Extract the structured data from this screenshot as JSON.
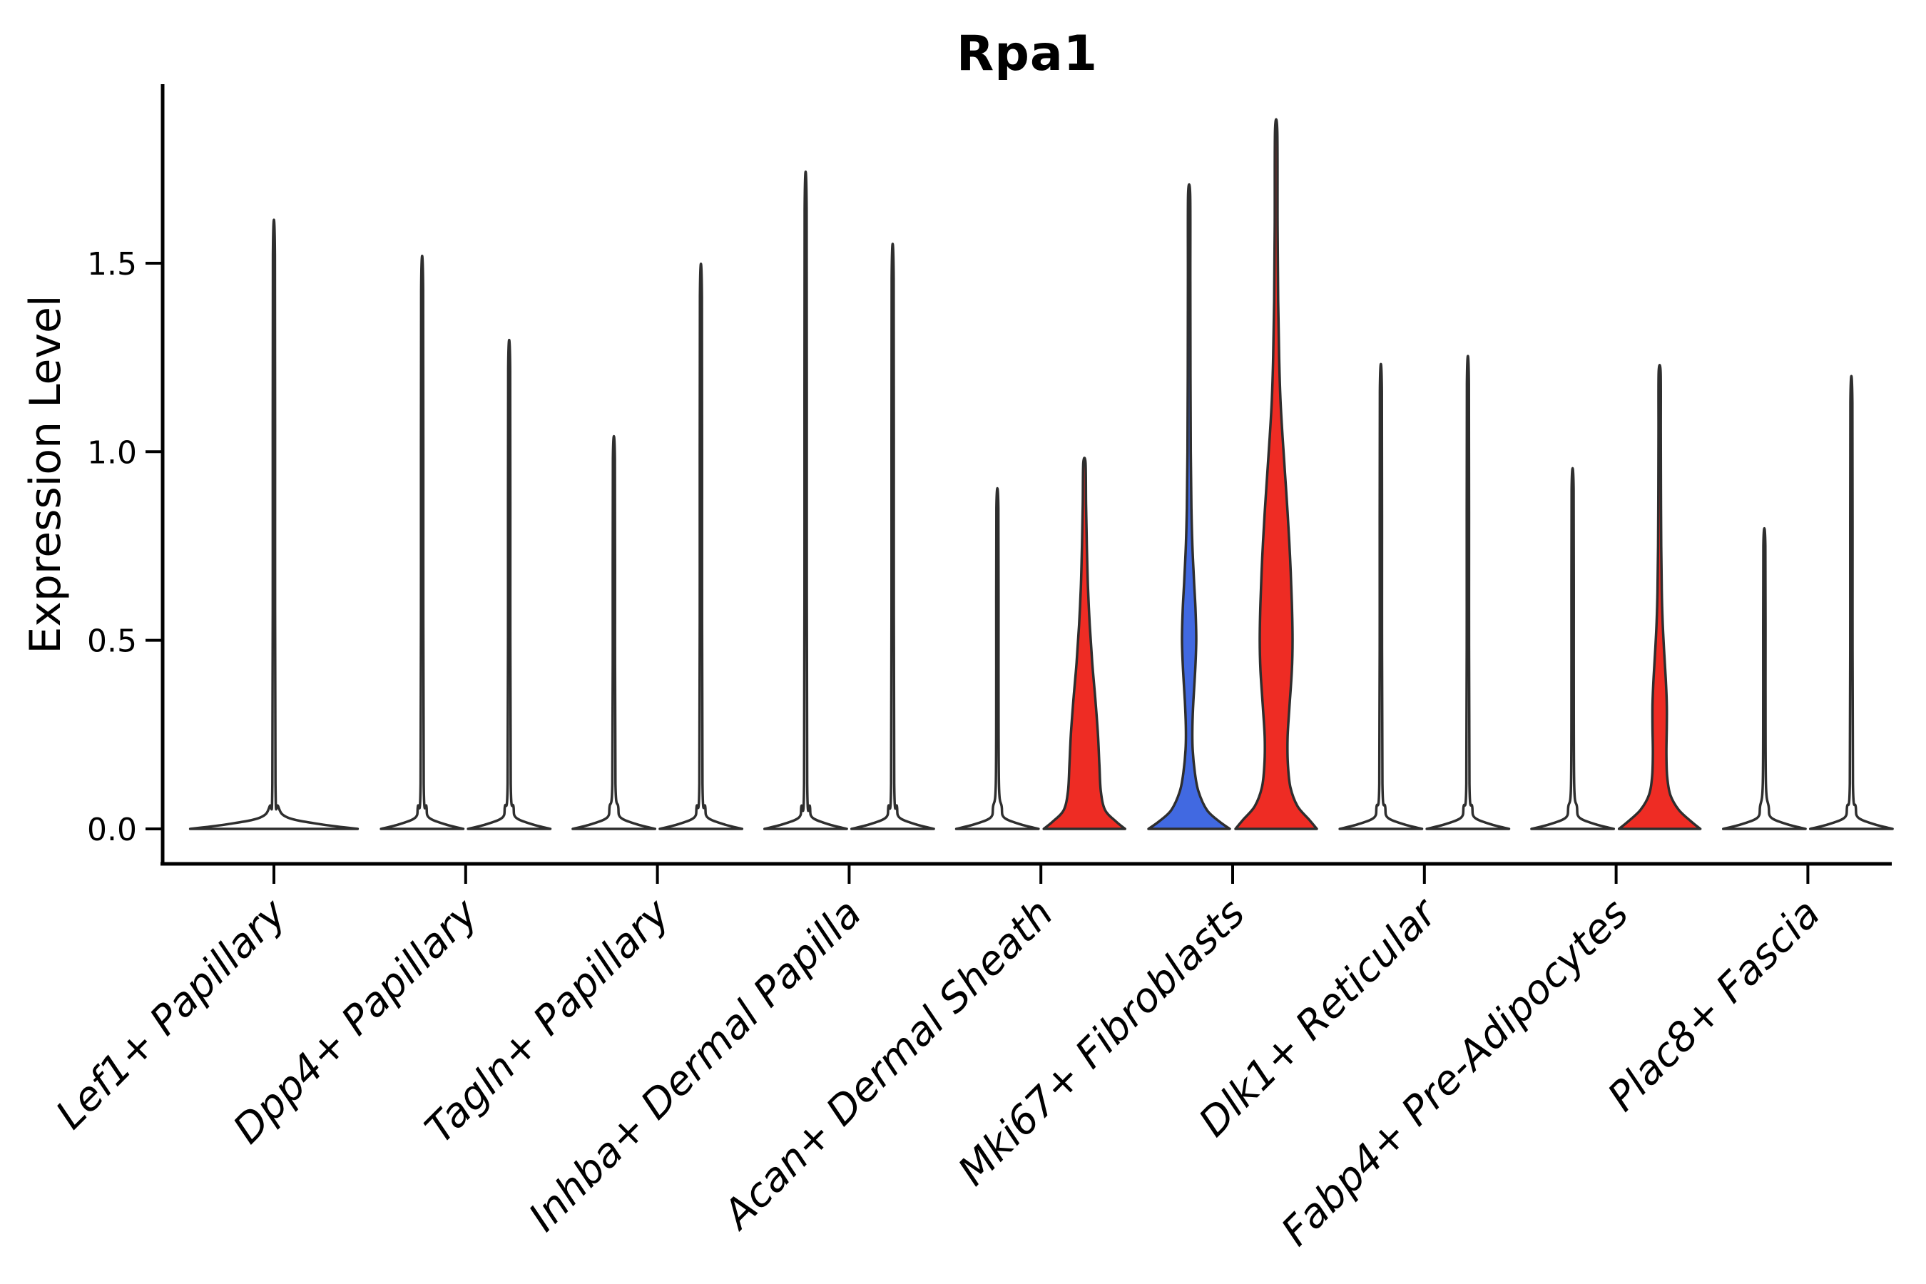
{
  "title": "Rpa1",
  "ylabel": "Expression Level",
  "chart_data": {
    "type": "violin",
    "title": "Rpa1",
    "xlabel": "",
    "ylabel": "Expression Level",
    "ylim": [
      -0.09,
      1.97
    ],
    "grid": false,
    "legend": "none",
    "yticks": [
      {
        "value": 0.0,
        "label": "0.0"
      },
      {
        "value": 0.5,
        "label": "0.5"
      },
      {
        "value": 1.0,
        "label": "1.0"
      },
      {
        "value": 1.5,
        "label": "1.5"
      }
    ],
    "colors": {
      "group_left_fill": "#4169e1",
      "group_right_fill": "#ee2c24",
      "unexpressed_fill": "none",
      "outline": "#2e2e2e",
      "axis": "#000000",
      "text": "#000000"
    },
    "categories": [
      "Lef1+ Papillary",
      "Dpp4+ Papillary",
      "Tagln+ Papillary",
      "Inhba+ Dermal Papilla",
      "Acan+ Dermal Sheath",
      "Mki67+ Fibroblasts",
      "Dlk1+ Reticular",
      "Fabp4+ Pre-Adipocytes",
      "Plac8+ Fascia"
    ],
    "violins": [
      {
        "category": "Lef1+ Papillary",
        "slot": "full",
        "fill": "none",
        "max": 1.52,
        "shape": "spike"
      },
      {
        "category": "Dpp4+ Papillary",
        "slot": "left",
        "fill": "none",
        "max": 1.43,
        "shape": "spike"
      },
      {
        "category": "Dpp4+ Papillary",
        "slot": "right",
        "fill": "none",
        "max": 1.22,
        "shape": "spike"
      },
      {
        "category": "Tagln+ Papillary",
        "slot": "left",
        "fill": "none",
        "max": 0.98,
        "shape": "spike"
      },
      {
        "category": "Tagln+ Papillary",
        "slot": "right",
        "fill": "none",
        "max": 1.41,
        "shape": "spike"
      },
      {
        "category": "Inhba+ Dermal Papilla",
        "slot": "left",
        "fill": "none",
        "max": 1.64,
        "shape": "spike"
      },
      {
        "category": "Inhba+ Dermal Papilla",
        "slot": "right",
        "fill": "none",
        "max": 1.46,
        "shape": "spike"
      },
      {
        "category": "Acan+ Dermal Sheath",
        "slot": "left",
        "fill": "none",
        "max": 0.85,
        "shape": "spike"
      },
      {
        "category": "Acan+ Dermal Sheath",
        "slot": "right",
        "fill": "#ee2c24",
        "max": 0.97,
        "shape": "body",
        "profile": [
          [
            0,
            57
          ],
          [
            0.02,
            44
          ],
          [
            0.05,
            29
          ],
          [
            0.1,
            23
          ],
          [
            0.17,
            21
          ],
          [
            0.25,
            19
          ],
          [
            0.34,
            15.5
          ],
          [
            0.44,
            11
          ],
          [
            0.54,
            7.5
          ],
          [
            0.64,
            5
          ],
          [
            0.75,
            3.4
          ],
          [
            0.86,
            2.3
          ],
          [
            0.97,
            1.6
          ]
        ]
      },
      {
        "category": "Mki67+ Fibroblasts",
        "slot": "left",
        "fill": "#4169e1",
        "max": 1.68,
        "shape": "body",
        "profile": [
          [
            0,
            57
          ],
          [
            0.02,
            42
          ],
          [
            0.05,
            25
          ],
          [
            0.1,
            13
          ],
          [
            0.15,
            8
          ],
          [
            0.21,
            5
          ],
          [
            0.27,
            4.6
          ],
          [
            0.34,
            6
          ],
          [
            0.42,
            8.5
          ],
          [
            0.5,
            10
          ],
          [
            0.58,
            9
          ],
          [
            0.66,
            6.8
          ],
          [
            0.75,
            4.6
          ],
          [
            0.85,
            3.2
          ],
          [
            1.0,
            2.3
          ],
          [
            1.2,
            1.9
          ],
          [
            1.45,
            1.7
          ],
          [
            1.68,
            1.5
          ]
        ]
      },
      {
        "category": "Mki67+ Fibroblasts",
        "slot": "right",
        "fill": "#ee2c24",
        "max": 1.85,
        "shape": "body",
        "profile": [
          [
            0,
            57
          ],
          [
            0.025,
            46
          ],
          [
            0.06,
            30
          ],
          [
            0.11,
            20
          ],
          [
            0.17,
            16.5
          ],
          [
            0.24,
            16
          ],
          [
            0.32,
            18.5
          ],
          [
            0.42,
            22
          ],
          [
            0.5,
            23
          ],
          [
            0.6,
            22
          ],
          [
            0.72,
            19.5
          ],
          [
            0.84,
            16
          ],
          [
            0.94,
            12.5
          ],
          [
            1.04,
            9
          ],
          [
            1.14,
            6
          ],
          [
            1.25,
            4.2
          ],
          [
            1.4,
            2.8
          ],
          [
            1.6,
            2.0
          ],
          [
            1.85,
            1.6
          ]
        ]
      },
      {
        "category": "Dlk1+ Reticular",
        "slot": "left",
        "fill": "none",
        "max": 1.16,
        "shape": "spike"
      },
      {
        "category": "Dlk1+ Reticular",
        "slot": "right",
        "fill": "none",
        "max": 1.18,
        "shape": "spike"
      },
      {
        "category": "Fabp4+ Pre-Adipocytes",
        "slot": "left",
        "fill": "none",
        "max": 0.9,
        "shape": "spike"
      },
      {
        "category": "Fabp4+ Pre-Adipocytes",
        "slot": "right",
        "fill": "#ee2c24",
        "max": 1.21,
        "shape": "body",
        "profile": [
          [
            0,
            57
          ],
          [
            0.02,
            44
          ],
          [
            0.05,
            27
          ],
          [
            0.09,
            15
          ],
          [
            0.14,
            10.5
          ],
          [
            0.2,
            9.5
          ],
          [
            0.27,
            10
          ],
          [
            0.33,
            10
          ],
          [
            0.4,
            8.5
          ],
          [
            0.48,
            6
          ],
          [
            0.55,
            4.2
          ],
          [
            0.63,
            3.0
          ],
          [
            0.75,
            2.2
          ],
          [
            0.9,
            1.8
          ],
          [
            1.05,
            1.6
          ],
          [
            1.21,
            1.4
          ]
        ]
      },
      {
        "category": "Plac8+ Fascia",
        "slot": "left",
        "fill": "none",
        "max": 0.75,
        "shape": "spike"
      },
      {
        "category": "Plac8+ Fascia",
        "slot": "right",
        "fill": "none",
        "max": 1.13,
        "shape": "spike"
      }
    ]
  }
}
